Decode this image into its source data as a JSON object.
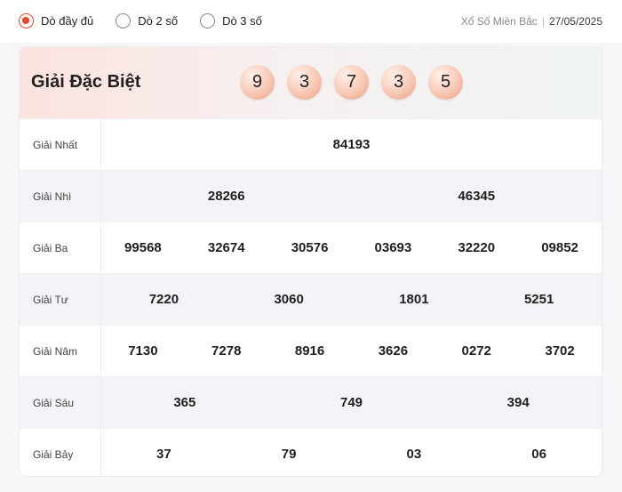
{
  "filter": {
    "options": [
      {
        "label": "Dò đầy đủ",
        "checked": true
      },
      {
        "label": "Dò 2 số",
        "checked": false
      },
      {
        "label": "Dò 3 số",
        "checked": false
      }
    ]
  },
  "meta": {
    "lottery": "Xổ Số Miền Bắc",
    "separator": "|",
    "date": "27/05/2025"
  },
  "special": {
    "label": "Giải Đặc Biệt",
    "digits": [
      "9",
      "3",
      "7",
      "3",
      "5"
    ]
  },
  "prizes": [
    {
      "label": "Giải Nhất",
      "numbers": [
        "84193"
      ]
    },
    {
      "label": "Giải Nhì",
      "numbers": [
        "28266",
        "46345"
      ]
    },
    {
      "label": "Giải Ba",
      "numbers": [
        "99568",
        "32674",
        "30576",
        "03693",
        "32220",
        "09852"
      ]
    },
    {
      "label": "Giải Tư",
      "numbers": [
        "7220",
        "3060",
        "1801",
        "5251"
      ]
    },
    {
      "label": "Giải Năm",
      "numbers": [
        "7130",
        "7278",
        "8916",
        "3626",
        "0272",
        "3702"
      ]
    },
    {
      "label": "Giải Sáu",
      "numbers": [
        "365",
        "749",
        "394"
      ]
    },
    {
      "label": "Giải Bảy",
      "numbers": [
        "37",
        "79",
        "03",
        "06"
      ]
    }
  ],
  "colors": {
    "accent": "#e8472a",
    "ball": "#f7c8b4",
    "alt_row": "#f3f4f8"
  }
}
